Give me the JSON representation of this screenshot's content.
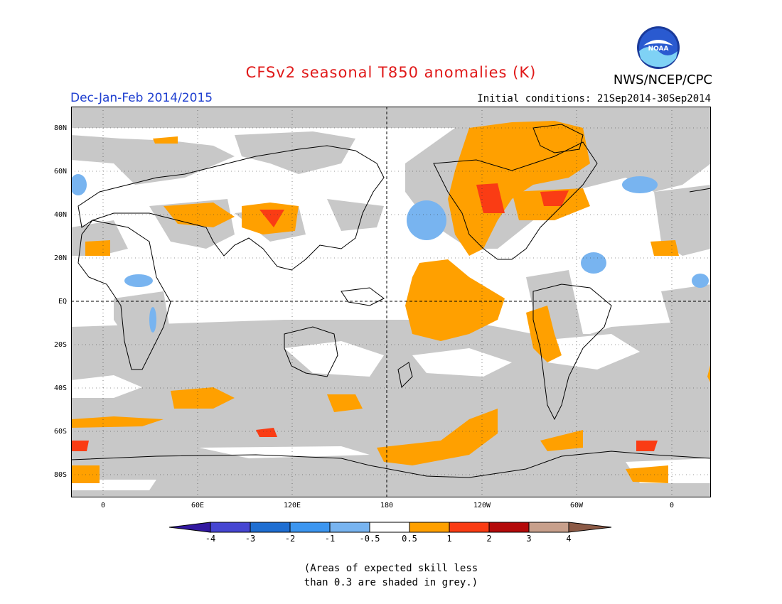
{
  "header": {
    "title": "CFSv2 seasonal T850 anomalies (K)",
    "season": "Dec-Jan-Feb 2014/2015",
    "initial_conditions": "Initial conditions: 21Sep2014-30Sep2014",
    "agency": "NWS/NCEP/CPC",
    "logo_text": "NOAA"
  },
  "map": {
    "lat_labels": [
      "80N",
      "60N",
      "40N",
      "20N",
      "EQ",
      "20S",
      "40S",
      "60S",
      "80S"
    ],
    "lon_labels": [
      "0",
      "60E",
      "120E",
      "180",
      "120W",
      "60W",
      "0"
    ],
    "colors": {
      "grey": "#c8c8c8",
      "light_blue": "#78b4f0",
      "orange": "#ffa000",
      "red_orange": "#fa3c14",
      "red": "#e61e00"
    }
  },
  "colorbar": {
    "tick_labels": [
      "-4",
      "-3",
      "-2",
      "-1",
      "-0.5",
      "0.5",
      "1",
      "2",
      "3",
      "4"
    ],
    "colors": [
      "#3218a0",
      "#4646d2",
      "#1e6ed2",
      "#3c96f0",
      "#78b4f0",
      "#ffffff",
      "#ffa000",
      "#fa3c14",
      "#b40a0a",
      "#c8a08c",
      "#8c5a46"
    ]
  },
  "note": {
    "line1": "(Areas of expected skill less",
    "line2": "than 0.3 are shaded in grey.)"
  }
}
